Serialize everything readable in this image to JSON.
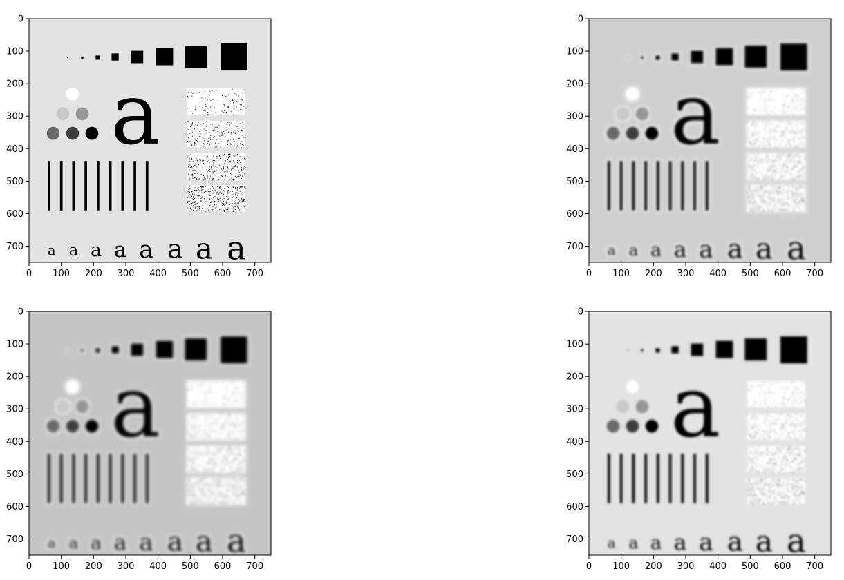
{
  "figure": {
    "panels": [
      {
        "id": "p1",
        "variant": "original"
      },
      {
        "id": "p2",
        "variant": "ringing"
      },
      {
        "id": "p3",
        "variant": "ringing-strong"
      },
      {
        "id": "p4",
        "variant": "smooth"
      }
    ],
    "axes": {
      "x_ticks": [
        0,
        100,
        200,
        300,
        400,
        500,
        600,
        700
      ],
      "y_ticks": [
        0,
        100,
        200,
        300,
        400,
        500,
        600,
        700
      ],
      "xlim": [
        0,
        750
      ],
      "ylim": [
        750,
        0
      ]
    },
    "background_gray": {
      "original": "#e3e3e3",
      "ringing": "#cfcfcf",
      "ringing-strong": "#c4c4c4",
      "smooth": "#e3e3e3"
    }
  },
  "test_pattern": {
    "squares": [
      {
        "cx": 120,
        "cy": 120,
        "s": 3
      },
      {
        "cx": 165,
        "cy": 120,
        "s": 7
      },
      {
        "cx": 213,
        "cy": 120,
        "s": 13
      },
      {
        "cx": 267,
        "cy": 118,
        "s": 22
      },
      {
        "cx": 335,
        "cy": 118,
        "s": 38
      },
      {
        "cx": 420,
        "cy": 117,
        "s": 53
      },
      {
        "cx": 517,
        "cy": 117,
        "s": 68
      },
      {
        "cx": 635,
        "cy": 118,
        "s": 83
      }
    ],
    "circles": [
      {
        "cx": 135,
        "cy": 232,
        "r": 20,
        "gray": 255
      },
      {
        "cx": 105,
        "cy": 293,
        "r": 20,
        "gray": 200
      },
      {
        "cx": 165,
        "cy": 293,
        "r": 20,
        "gray": 150
      },
      {
        "cx": 75,
        "cy": 353,
        "r": 20,
        "gray": 105
      },
      {
        "cx": 135,
        "cy": 353,
        "r": 20,
        "gray": 60
      },
      {
        "cx": 195,
        "cy": 353,
        "r": 20,
        "gray": 0
      }
    ],
    "bars": {
      "x_start": 58,
      "x_step": 38,
      "count": 9,
      "width": 8,
      "y1": 438,
      "y2": 590
    },
    "noise_boxes": [
      {
        "x": 490,
        "y": 215,
        "w": 180,
        "h": 80,
        "density": 0.12
      },
      {
        "x": 490,
        "y": 315,
        "w": 180,
        "h": 80,
        "density": 0.25
      },
      {
        "x": 490,
        "y": 415,
        "w": 180,
        "h": 80,
        "density": 0.38
      },
      {
        "x": 490,
        "y": 513,
        "w": 180,
        "h": 80,
        "density": 0.5
      }
    ],
    "big_letter": "a",
    "small_letters": [
      "a",
      "a",
      "a",
      "a",
      "a",
      "a",
      "a",
      "a"
    ],
    "small_letter_positions": [
      {
        "x": 70,
        "size": 42
      },
      {
        "x": 138,
        "size": 50
      },
      {
        "x": 208,
        "size": 58
      },
      {
        "x": 283,
        "size": 66
      },
      {
        "x": 363,
        "size": 74
      },
      {
        "x": 453,
        "size": 82
      },
      {
        "x": 543,
        "size": 90
      },
      {
        "x": 643,
        "size": 100
      }
    ]
  }
}
